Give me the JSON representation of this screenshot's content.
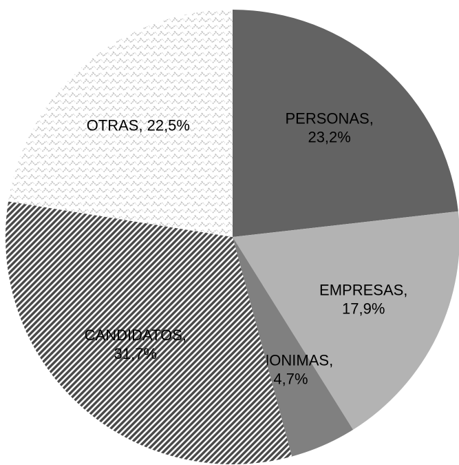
{
  "chart_data": {
    "type": "pie",
    "categories": [
      "PERSONAS,",
      "EMPRESAS,",
      "ANONIMAS,",
      "CANDIDATOS,",
      "OTRAS,"
    ],
    "values": [
      23.2,
      17.9,
      4.7,
      31.7,
      22.5
    ],
    "value_labels": [
      "23,2%",
      "17,9%",
      "4,7%",
      "31,7%",
      "22,5%"
    ],
    "colors": [
      "#636363",
      "#b3b3b3",
      "#808080",
      "#4a4a4a",
      "#bdbdbd"
    ],
    "patterns": [
      "solid",
      "solid",
      "solid",
      "diagonal",
      "zigzag"
    ]
  }
}
